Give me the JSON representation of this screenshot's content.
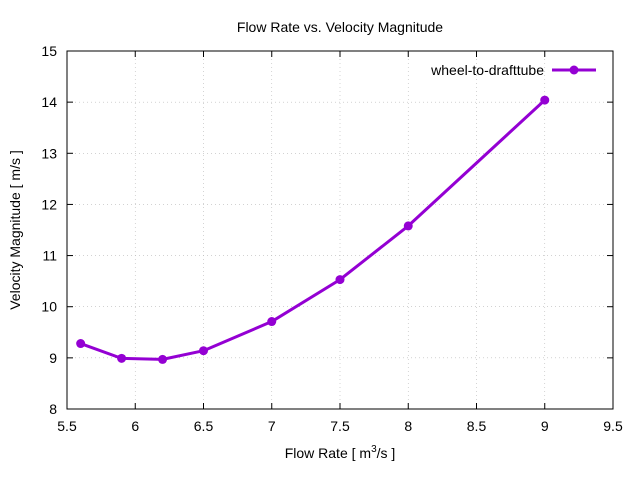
{
  "chart_data": {
    "type": "line",
    "title": "Flow Rate vs. Velocity Magnitude",
    "xlabel": "Flow Rate [ m",
    "xlabel_sup": "3",
    "xlabel_tail": "/s ]",
    "ylabel": "Velocity Magnitude [ m/s ]",
    "xlim": [
      5.5,
      9.5
    ],
    "ylim": [
      8,
      15
    ],
    "xticks": [
      5.5,
      6,
      6.5,
      7,
      7.5,
      8,
      8.5,
      9,
      9.5
    ],
    "xtick_labels": [
      "5.5",
      "6",
      "6.5",
      "7",
      "7.5",
      "8",
      "8.5",
      "9",
      "9.5"
    ],
    "yticks": [
      8,
      9,
      10,
      11,
      12,
      13,
      14,
      15
    ],
    "ytick_labels": [
      "8",
      "9",
      "10",
      "11",
      "12",
      "13",
      "14",
      "15"
    ],
    "grid": true,
    "legend_position": "top-right",
    "series": [
      {
        "name": "wheel-to-drafttube",
        "color": "#9400d3",
        "x": [
          5.6,
          5.9,
          6.2,
          6.5,
          7.0,
          7.5,
          8.0,
          9.0
        ],
        "y": [
          9.28,
          8.99,
          8.97,
          9.14,
          9.71,
          10.53,
          11.58,
          14.04
        ]
      }
    ]
  }
}
